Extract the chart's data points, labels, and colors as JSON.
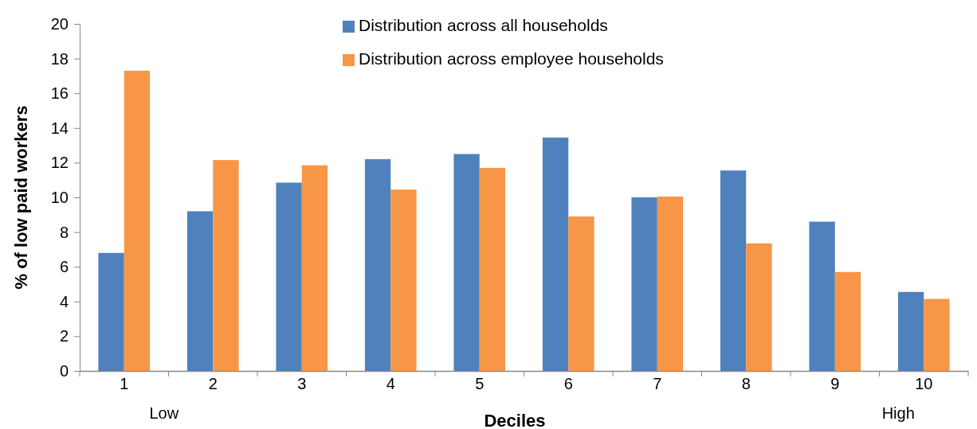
{
  "chart_data": {
    "type": "bar",
    "xlabel": "Deciles",
    "ylabel": "% of low paid workers",
    "categories": [
      "1",
      "2",
      "3",
      "4",
      "5",
      "6",
      "7",
      "8",
      "9",
      "10"
    ],
    "series": [
      {
        "name": "Distribution across all households",
        "color": "#4f81bd",
        "values": [
          6.8,
          9.2,
          10.85,
          12.2,
          12.5,
          13.45,
          10.0,
          11.55,
          8.6,
          4.55
        ]
      },
      {
        "name": "Distribution across employee households",
        "color": "#f79646",
        "values": [
          17.3,
          12.15,
          11.85,
          10.45,
          11.7,
          8.9,
          10.05,
          7.35,
          5.7,
          4.15
        ]
      }
    ],
    "ylim": [
      0,
      20
    ],
    "yticks": [
      0,
      2,
      4,
      6,
      8,
      10,
      12,
      14,
      16,
      18,
      20
    ],
    "grid": false,
    "legend": "top",
    "annotations": [
      "Low",
      "High"
    ]
  }
}
